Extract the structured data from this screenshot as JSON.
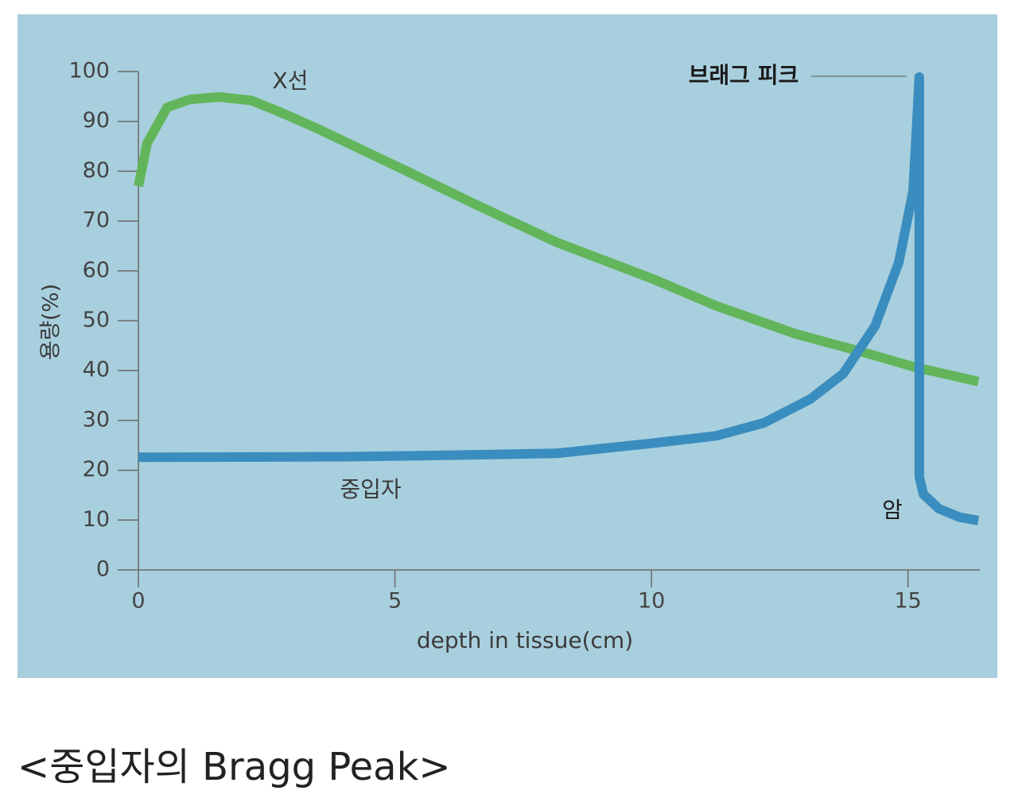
{
  "chart_data": {
    "type": "line",
    "ylabel": "용량(%)",
    "xlabel": "depth in tissue(cm)",
    "xlim": [
      0,
      16.4
    ],
    "ylim": [
      0,
      100
    ],
    "xticks": [
      0,
      5,
      10,
      15
    ],
    "yticks": [
      0,
      10,
      20,
      30,
      40,
      50,
      60,
      70,
      80,
      90,
      100
    ],
    "grid": false,
    "background": "#a8cfdd",
    "series": [
      {
        "name": "X선",
        "color": "#62b55a",
        "x": [
          0,
          0.17,
          0.56,
          1.0,
          1.57,
          2.2,
          2.73,
          3.5,
          5.05,
          6.6,
          8.16,
          10,
          11.26,
          12.8,
          14.05,
          15.13,
          16.37
        ],
        "values": [
          77,
          85.6,
          92.8,
          94.4,
          94.9,
          94.2,
          92,
          88.5,
          80.9,
          73.2,
          65.7,
          58.5,
          53,
          47.4,
          43.9,
          40.7,
          37.8
        ]
      },
      {
        "name": "중입자",
        "color": "#3a8dbf",
        "x": [
          0,
          4,
          6,
          8.16,
          10,
          11.26,
          12.19,
          13.1,
          13.74,
          14.36,
          14.82,
          15.1,
          15.22,
          15.22,
          15.3,
          15.6,
          16.0,
          16.37
        ],
        "values": [
          22.6,
          22.7,
          23,
          23.4,
          25.4,
          26.9,
          29.5,
          34.3,
          39.4,
          49,
          61.7,
          76,
          98.9,
          18.7,
          15.2,
          12.3,
          10.6,
          9.9
        ]
      }
    ],
    "annotations": [
      "브래그 피크",
      "암"
    ]
  },
  "caption": "<중입자의 Bragg Peak>"
}
